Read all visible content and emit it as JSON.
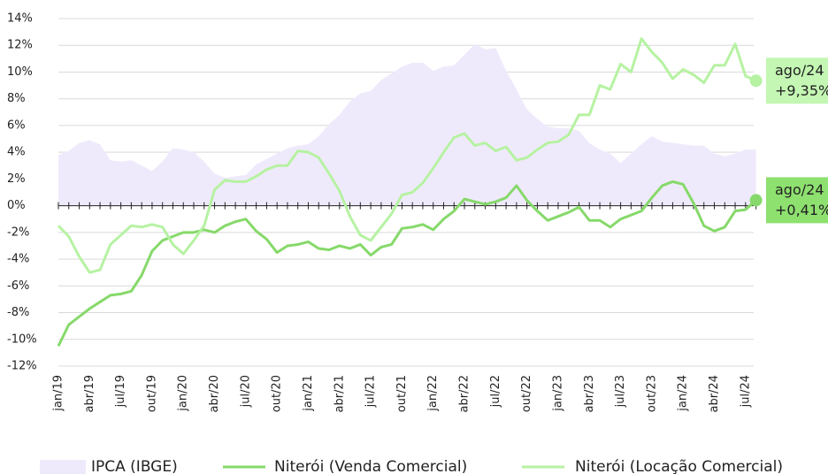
{
  "chart_data": {
    "type": "line",
    "categories": [
      "jan/19",
      null,
      null,
      "abr/19",
      null,
      null,
      "jul/19",
      null,
      null,
      "out/19",
      null,
      null,
      "jan/20",
      null,
      null,
      "abr/20",
      null,
      null,
      "jul/20",
      null,
      null,
      "out/20",
      null,
      null,
      "jan/21",
      null,
      null,
      "abr/21",
      null,
      null,
      "jul/21",
      null,
      null,
      "out/21",
      null,
      null,
      "jan/22",
      null,
      null,
      "abr/22",
      null,
      null,
      "jul/22",
      null,
      null,
      "out/22",
      null,
      null,
      "jan/23",
      null,
      null,
      "abr/23",
      null,
      null,
      "jul/23",
      null,
      null,
      "out/23",
      null,
      null,
      "jan/24",
      null,
      null,
      "abr/24",
      null,
      null,
      "jul/24",
      null
    ],
    "series": [
      {
        "name": "IPCA (IBGE)",
        "kind": "area",
        "color": "#efeafb",
        "values": [
          3.8,
          4.1,
          4.7,
          4.9,
          4.6,
          3.4,
          3.3,
          3.4,
          3.0,
          2.6,
          3.3,
          4.3,
          4.2,
          4.0,
          3.3,
          2.4,
          2.1,
          2.2,
          2.3,
          3.1,
          3.5,
          3.9,
          4.3,
          4.5,
          4.6,
          5.2,
          6.1,
          6.8,
          7.8,
          8.4,
          8.6,
          9.4,
          9.9,
          10.4,
          10.7,
          10.7,
          10.1,
          10.4,
          10.5,
          11.3,
          12.1,
          11.7,
          11.8,
          10.1,
          8.7,
          7.2,
          6.5,
          5.9,
          5.8,
          5.8,
          5.6,
          4.7,
          4.2,
          3.9,
          3.2,
          3.9,
          4.6,
          5.2,
          4.8,
          4.7,
          4.6,
          4.5,
          4.5,
          3.9,
          3.7,
          3.9,
          4.2,
          4.2
        ]
      },
      {
        "name": "Niterói (Venda Comercial)",
        "kind": "line",
        "color": "#86d96a",
        "label_color": "#8ee06f",
        "end_label": {
          "date": "ago/24",
          "value": "+0,41%"
        },
        "values": [
          -10.5,
          -8.9,
          -8.3,
          -7.7,
          -7.2,
          -6.7,
          -6.6,
          -6.4,
          -5.2,
          -3.4,
          -2.6,
          -2.3,
          -2.0,
          -2.0,
          -1.8,
          -2.0,
          -1.5,
          -1.2,
          -1.0,
          -1.9,
          -2.5,
          -3.5,
          -3.0,
          -2.9,
          -2.7,
          -3.2,
          -3.3,
          -3.0,
          -3.2,
          -2.9,
          -3.7,
          -3.1,
          -2.9,
          -1.7,
          -1.6,
          -1.4,
          -1.8,
          -1.0,
          -0.4,
          0.5,
          0.3,
          0.1,
          0.3,
          0.6,
          1.5,
          0.4,
          -0.4,
          -1.1,
          -0.8,
          -0.5,
          -0.1,
          -1.1,
          -1.1,
          -1.6,
          -1.0,
          -0.7,
          -0.4,
          0.6,
          1.5,
          1.8,
          1.6,
          0.2,
          -1.5,
          -1.9,
          -1.6,
          -0.4,
          -0.3,
          0.41
        ]
      },
      {
        "name": "Niterói (Locação Comercial)",
        "kind": "line",
        "color": "#b6f2a2",
        "label_color": "#c3f7b3",
        "end_label": {
          "date": "ago/24",
          "value": "+9,35%"
        },
        "values": [
          -1.5,
          -2.3,
          -3.8,
          -5.0,
          -4.8,
          -2.9,
          -2.2,
          -1.5,
          -1.6,
          -1.4,
          -1.6,
          -2.9,
          -3.6,
          -2.6,
          -1.5,
          1.2,
          1.9,
          1.8,
          1.8,
          2.2,
          2.7,
          3.0,
          3.0,
          4.1,
          4.0,
          3.6,
          2.4,
          1.1,
          -0.8,
          -2.2,
          -2.6,
          -1.6,
          -0.6,
          0.8,
          1.0,
          1.7,
          2.8,
          4.0,
          5.1,
          5.4,
          4.5,
          4.7,
          4.1,
          4.4,
          3.4,
          3.6,
          4.2,
          4.7,
          4.8,
          5.3,
          6.8,
          6.8,
          9.0,
          8.7,
          10.6,
          10.0,
          12.5,
          11.5,
          10.7,
          9.5,
          10.2,
          9.8,
          9.2,
          10.5,
          10.5,
          12.1,
          9.7,
          9.35
        ]
      }
    ],
    "ylim": [
      -12,
      14
    ],
    "yticks": [
      {
        "value": -12,
        "label": "-12%"
      },
      {
        "value": -10,
        "label": "-10%"
      },
      {
        "value": -8,
        "label": "-8%"
      },
      {
        "value": -6,
        "label": "-6%"
      },
      {
        "value": -4,
        "label": "-4%"
      },
      {
        "value": -2,
        "label": "-2%"
      },
      {
        "value": 0,
        "label": "0%"
      },
      {
        "value": 2,
        "label": "2%"
      },
      {
        "value": 4,
        "label": "4%"
      },
      {
        "value": 6,
        "label": "6%"
      },
      {
        "value": 8,
        "label": "8%"
      },
      {
        "value": 10,
        "label": "10%"
      },
      {
        "value": 12,
        "label": "12%"
      },
      {
        "value": 14,
        "label": "14%"
      }
    ],
    "grid": true,
    "legend": "bottom"
  }
}
